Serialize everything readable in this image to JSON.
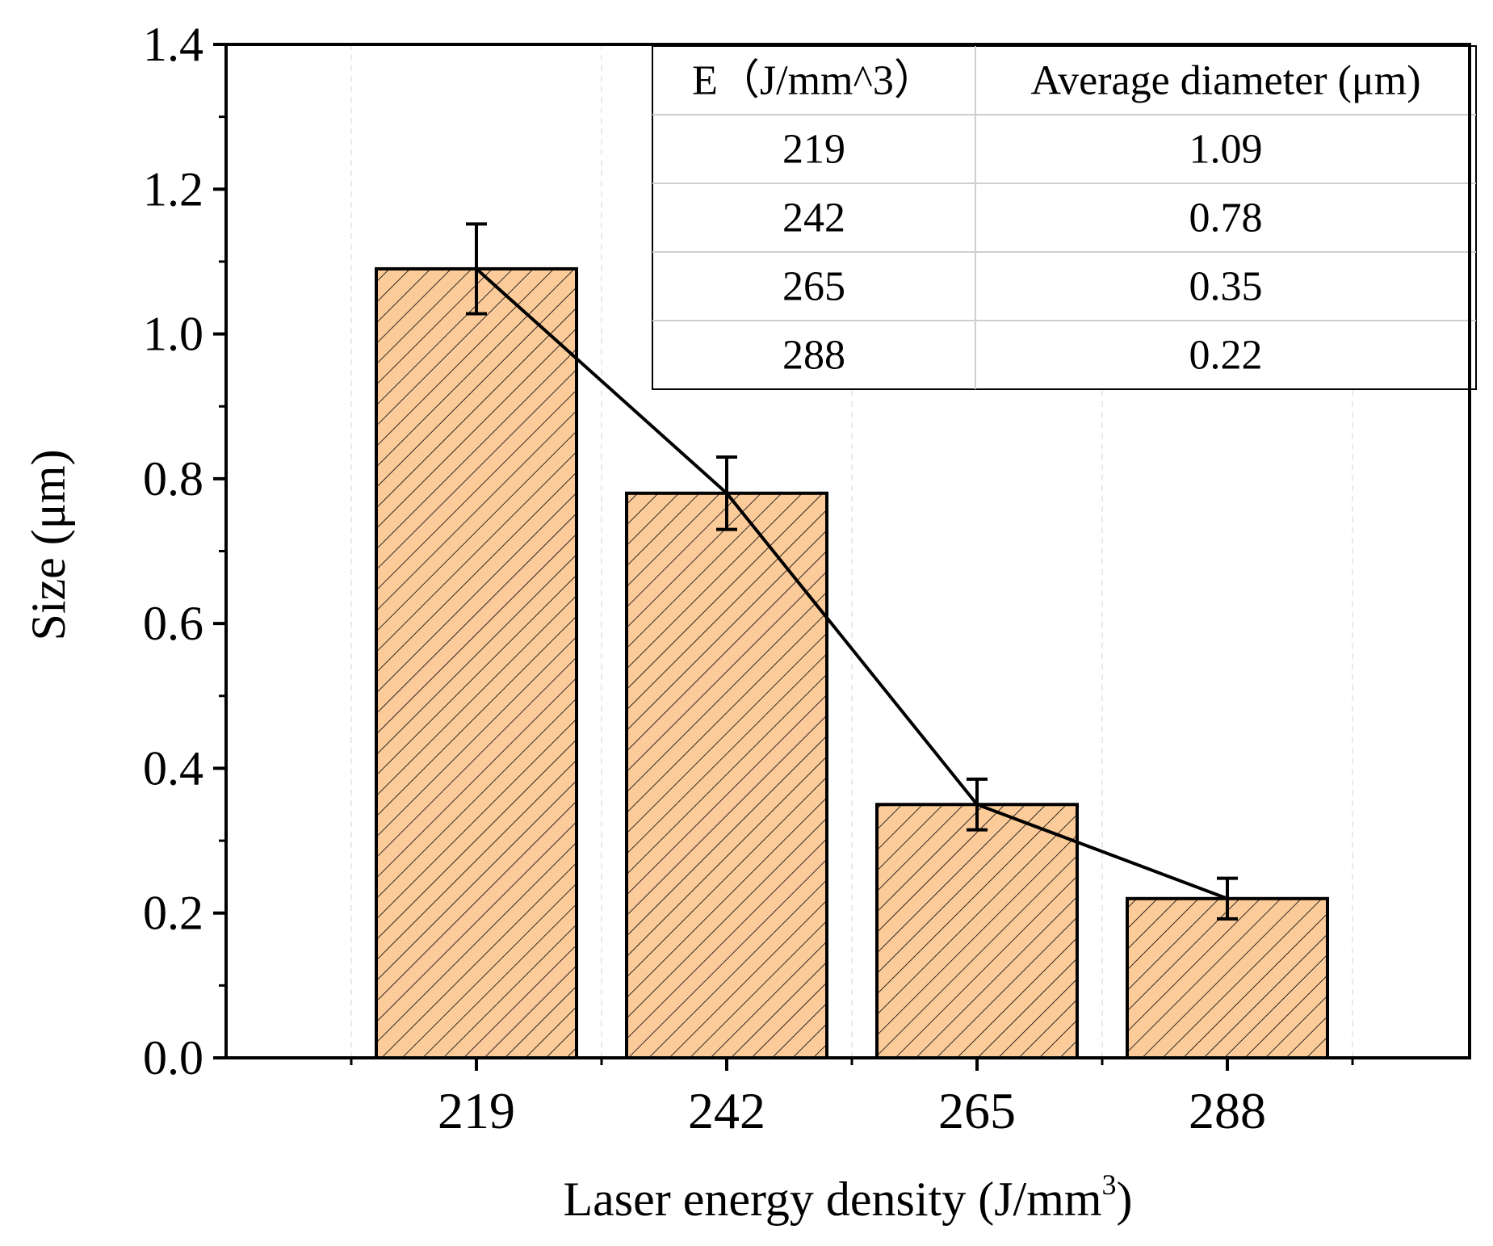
{
  "chart_data": {
    "type": "bar",
    "categories": [
      "219",
      "242",
      "265",
      "288"
    ],
    "series": [
      {
        "values": [
          1.09,
          0.78,
          0.35,
          0.22
        ],
        "error": [
          0.062,
          0.05,
          0.035,
          0.028
        ],
        "fill": "#FCCB9A",
        "hatch": "diagonal",
        "connecting_line": true
      }
    ],
    "xlabel_main": "Laser energy density (J/mm",
    "xlabel_sup": "3",
    "xlabel_close": ")",
    "ylabel": "Size (μm)",
    "ylim": [
      0,
      1.4
    ],
    "yticks": [
      "0.0",
      "0.2",
      "0.4",
      "0.6",
      "0.8",
      "1.0",
      "1.2",
      "1.4"
    ],
    "grid": "vertical-dashed",
    "legend": "none",
    "inset_table": {
      "placement": "top-right",
      "headers": [
        "E（J/mm^3）",
        "Average diameter (μm)"
      ],
      "rows": [
        [
          "219",
          "1.09"
        ],
        [
          "242",
          "0.78"
        ],
        [
          "265",
          "0.35"
        ],
        [
          "288",
          "0.22"
        ]
      ]
    }
  }
}
